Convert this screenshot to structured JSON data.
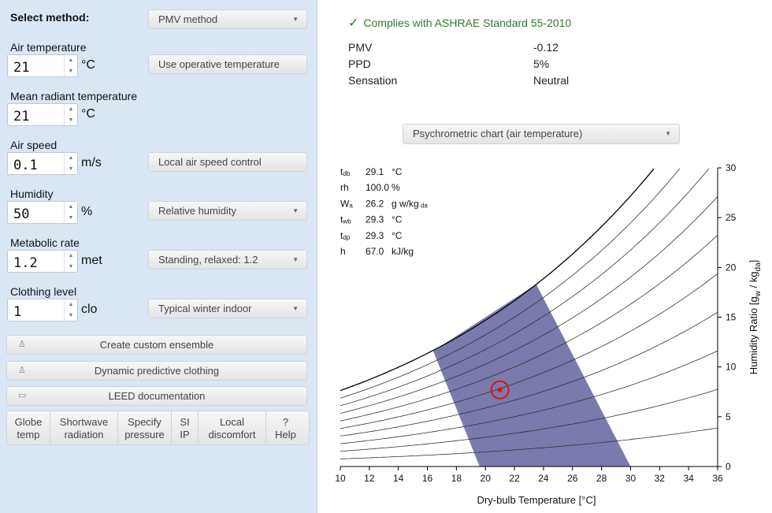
{
  "method": {
    "label": "Select method:",
    "value": "PMV method"
  },
  "inputs": [
    {
      "label": "Air temperature",
      "value": "21",
      "unit": "°C",
      "side": {
        "label": "Use operative temperature",
        "dropdown": false
      }
    },
    {
      "label": "Mean radiant temperature",
      "value": "21",
      "unit": "°C",
      "side": null
    },
    {
      "label": "Air speed",
      "value": "0.1",
      "unit": "m/s",
      "side": {
        "label": "Local air speed control",
        "dropdown": false
      }
    },
    {
      "label": "Humidity",
      "value": "50",
      "unit": "%",
      "side": {
        "label": "Relative humidity",
        "dropdown": true
      }
    },
    {
      "label": "Metabolic rate",
      "value": "1.2",
      "unit": "met",
      "side": {
        "label": "Standing, relaxed: 1.2",
        "dropdown": true
      }
    },
    {
      "label": "Clothing level",
      "value": "1",
      "unit": "clo",
      "side": {
        "label": "Typical winter indoor",
        "dropdown": true
      }
    }
  ],
  "actions": {
    "custom_ensemble": "Create custom ensemble",
    "dynamic_clothing": "Dynamic predictive clothing",
    "leed": "LEED documentation"
  },
  "tabs": [
    {
      "line1": "Globe",
      "line2": "temp"
    },
    {
      "line1": "Shortwave",
      "line2": "radiation"
    },
    {
      "line1": "Specify",
      "line2": "pressure"
    },
    {
      "line1": "SI",
      "line2": "IP"
    },
    {
      "line1": "Local",
      "line2": "discomfort"
    },
    {
      "line1": "?",
      "line2": "Help"
    }
  ],
  "results": {
    "status": "Complies with ASHRAE Standard 55-2010",
    "rows": [
      {
        "label": "PMV",
        "value": "-0.12"
      },
      {
        "label": "PPD",
        "value": "5%"
      },
      {
        "label": "Sensation",
        "value": "Neutral"
      }
    ]
  },
  "chart_selector": "Psychrometric chart (air temperature)",
  "readout": [
    {
      "sym": "t",
      "sub": "db",
      "value": "29.1",
      "unit": "°C",
      "unit_sub": ""
    },
    {
      "sym": "rh",
      "sub": "",
      "value": "100.0",
      "unit": "%",
      "unit_sub": ""
    },
    {
      "sym": "W",
      "sub": "a",
      "value": "26.2",
      "unit": "g w/kg",
      "unit_sub": "da"
    },
    {
      "sym": "t",
      "sub": "wb",
      "value": "29.3",
      "unit": "°C",
      "unit_sub": ""
    },
    {
      "sym": "t",
      "sub": "dp",
      "value": "29.3",
      "unit": "°C",
      "unit_sub": ""
    },
    {
      "sym": "h",
      "sub": "",
      "value": "67.0",
      "unit": "kJ/kg",
      "unit_sub": ""
    }
  ],
  "chart_data": {
    "type": "line",
    "xlabel": "Dry-bulb Temperature [°C]",
    "ylabel": "Humidity Ratio [g_w / kg_da]",
    "xlim": [
      10,
      36
    ],
    "ylim": [
      0,
      30
    ],
    "xticks": [
      10,
      12,
      14,
      16,
      18,
      20,
      22,
      24,
      26,
      28,
      30,
      32,
      34,
      36
    ],
    "yticks": [
      0,
      5,
      10,
      15,
      20,
      25,
      30
    ],
    "rh_curves": [
      10,
      20,
      30,
      40,
      50,
      60,
      70,
      80,
      90,
      100
    ],
    "comfort_zone": [
      [
        19.6,
        0
      ],
      [
        30.0,
        0
      ],
      [
        23.5,
        18.3
      ],
      [
        16.4,
        11.6
      ]
    ],
    "current_point": {
      "x": 21,
      "y": 7.7
    },
    "colors": {
      "zone": "#7b7aad",
      "point": "#dd1111",
      "curve": "#333333"
    }
  }
}
